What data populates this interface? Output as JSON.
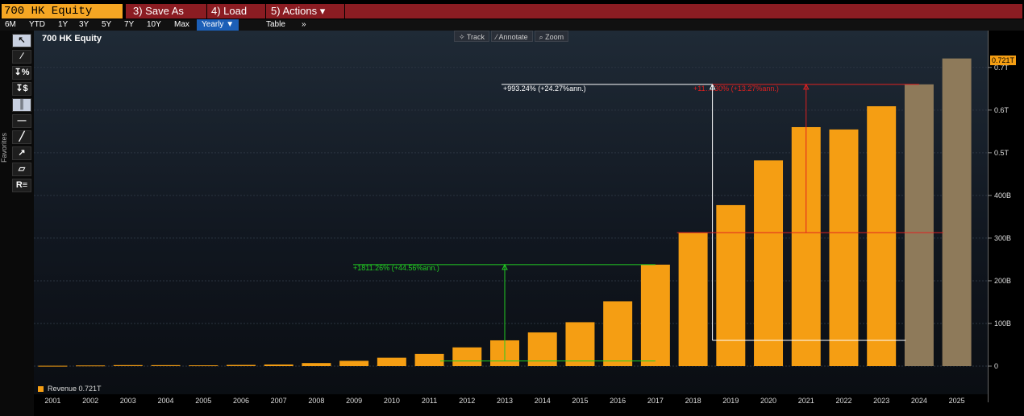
{
  "header": {
    "security": "700 HK Equity",
    "save_as": "3) Save As",
    "load": "4) Load",
    "actions": "5) Actions ▾"
  },
  "range_buttons": [
    "6M",
    "YTD",
    "1Y",
    "3Y",
    "5Y",
    "7Y",
    "10Y",
    "Max"
  ],
  "period_select": "Yearly ▼",
  "table_button": "Table",
  "more_button": "»",
  "tool_sidebar_label": "Favorites",
  "tools": [
    "cursor-arrow",
    "pencil",
    "percent-arrow",
    "dollar-arrow",
    "bars",
    "line",
    "trend-line",
    "trend-arrows",
    "band",
    "R"
  ],
  "chart_title": "700 HK Equity",
  "mode_buttons": [
    "✧ Track",
    "⁄ Annotate",
    "⌕ Zoom"
  ],
  "legend_label": "Revenue  0.721T",
  "last_value_badge": "0.721T",
  "colors": {
    "bar": "#f59e13",
    "bar_estimate": "#8e7a5a",
    "annotation_green": "#22cc22",
    "annotation_white": "#ffffff",
    "annotation_red": "#e02020"
  },
  "annotations": {
    "green": "+1811.26% (+44.56%ann.)",
    "white": "+993.24% (+24.27%ann.)",
    "red": "+11….30% (+13.27%ann.)"
  },
  "chart_data": {
    "type": "bar",
    "title": "700 HK Equity",
    "categories": [
      "2001",
      "2002",
      "2003",
      "2004",
      "2005",
      "2006",
      "2007",
      "2008",
      "2009",
      "2010",
      "2011",
      "2012",
      "2013",
      "2014",
      "2015",
      "2016",
      "2017",
      "2018",
      "2019",
      "2020",
      "2021",
      "2022",
      "2023",
      "2024",
      "2025"
    ],
    "series": [
      {
        "name": "Revenue",
        "values": [
          0.8,
          1.5,
          2.3,
          2.2,
          1.8,
          2.8,
          3.8,
          7.2,
          12.4,
          19.6,
          28.5,
          43.9,
          60.4,
          78.9,
          102.9,
          151.9,
          237.8,
          312.7,
          377.3,
          482.1,
          560.1,
          554.6,
          609.0,
          660.3,
          721.0
        ],
        "estimate_from_index": 23
      }
    ],
    "y_ticks": [
      {
        "value": 0,
        "label": "0"
      },
      {
        "value": 100,
        "label": "100B"
      },
      {
        "value": 200,
        "label": "200B"
      },
      {
        "value": 300,
        "label": "300B"
      },
      {
        "value": 400,
        "label": "400B"
      },
      {
        "value": 500,
        "label": "0.5T"
      },
      {
        "value": 600,
        "label": "0.6T"
      },
      {
        "value": 700,
        "label": "0.7T"
      }
    ],
    "ylim": [
      -60,
      780
    ],
    "y_unit": "B"
  }
}
